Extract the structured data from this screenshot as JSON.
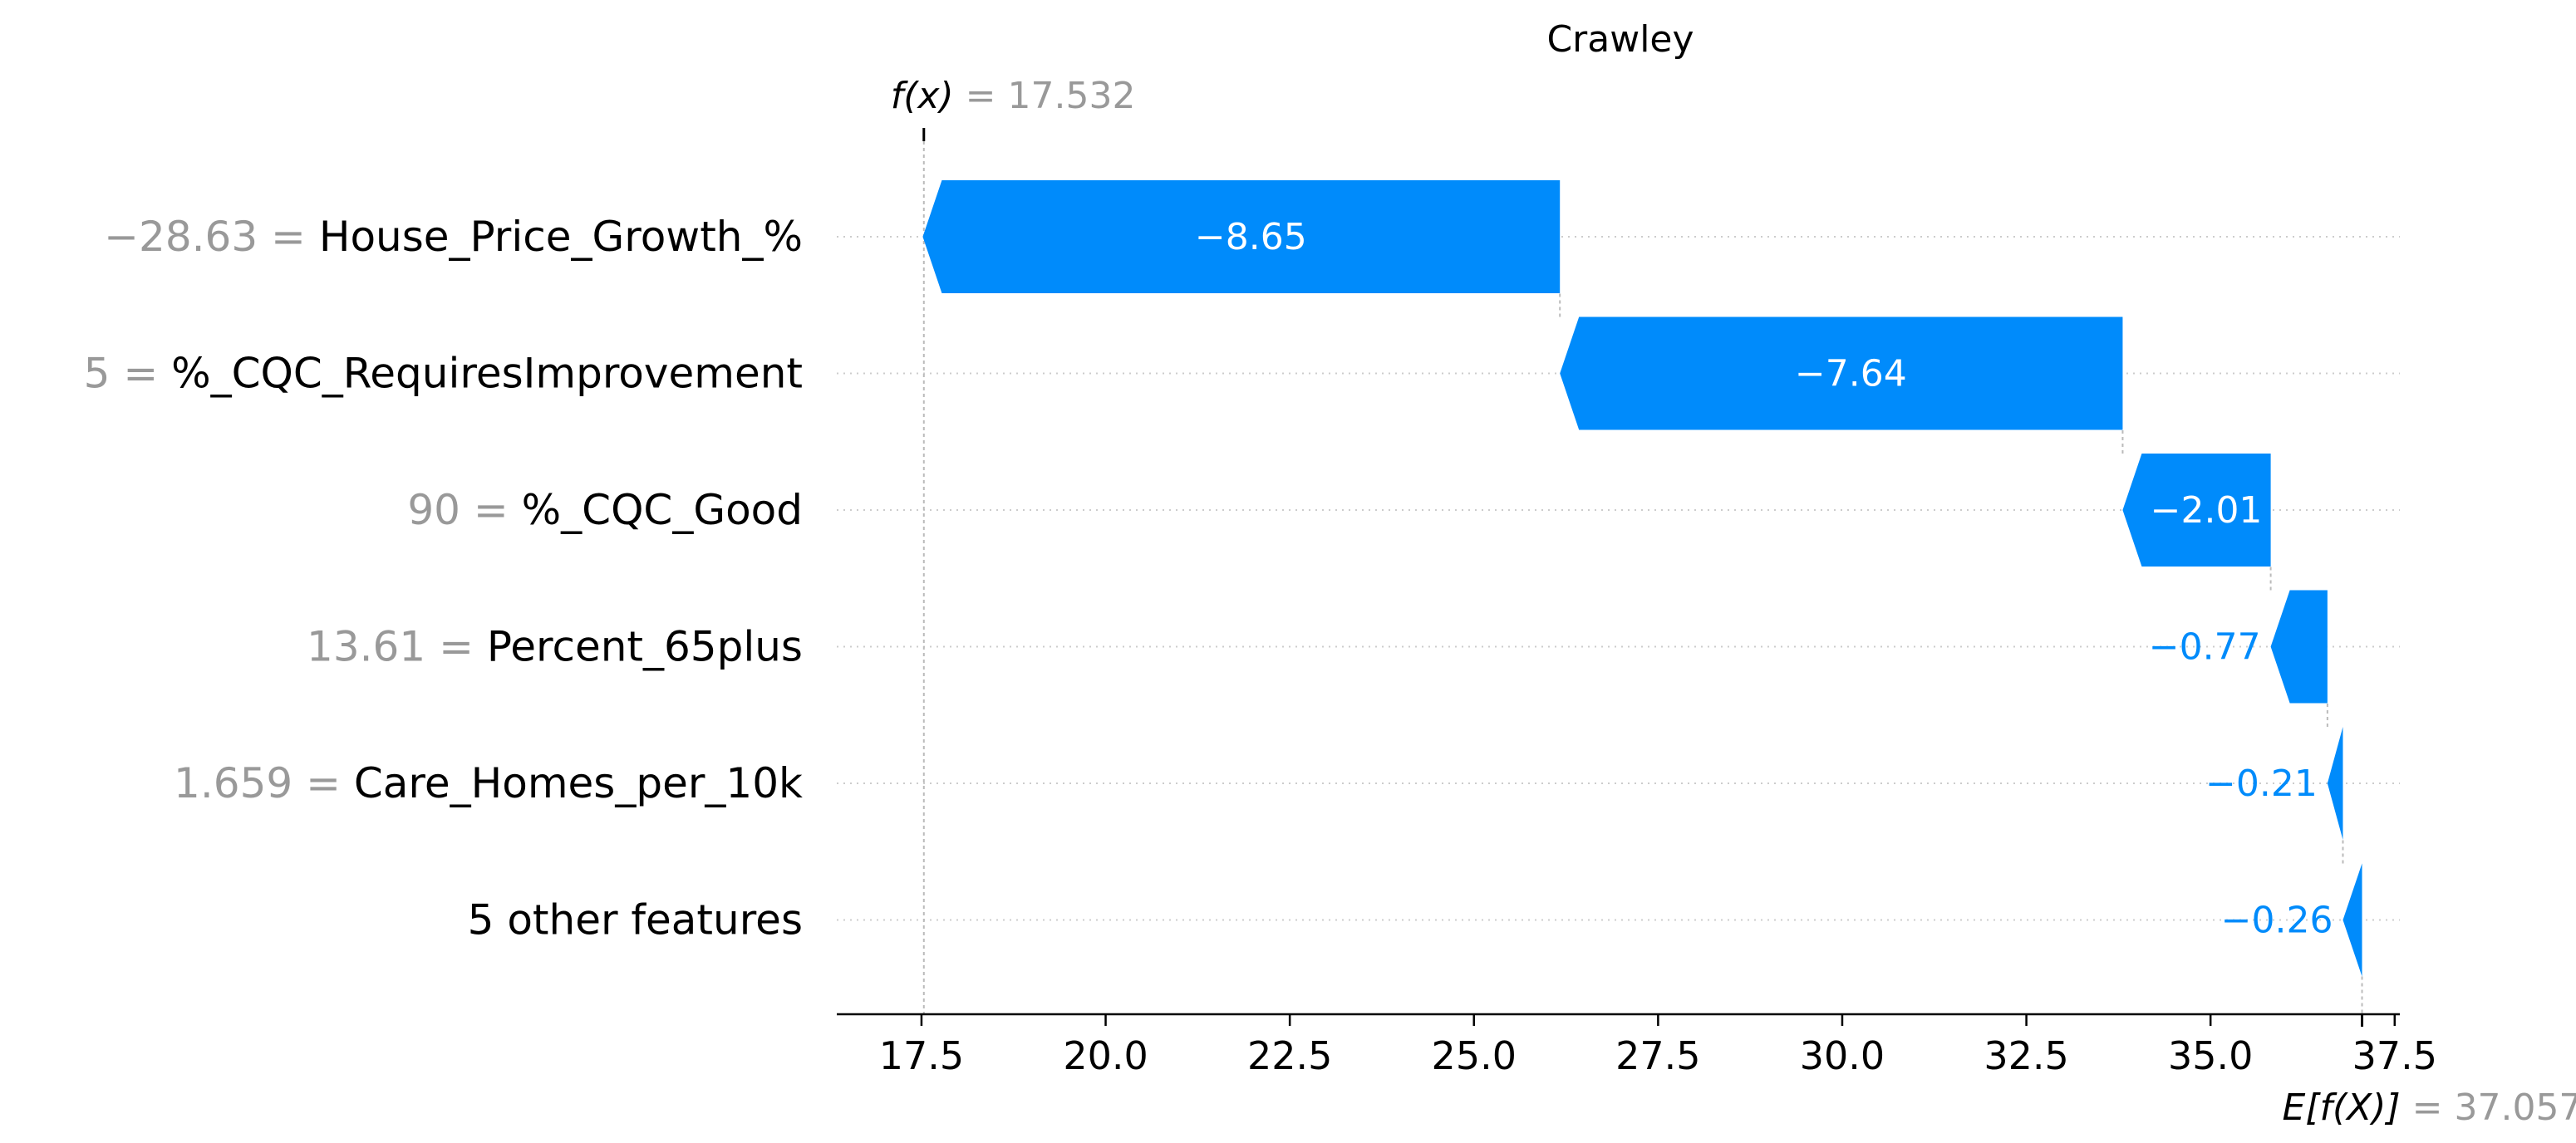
{
  "chart_data": {
    "type": "waterfall",
    "title": "Crawley",
    "fx": {
      "label": "f(x)",
      "value": "17.532",
      "num": 17.532
    },
    "base": {
      "label": "E[f(X)]",
      "value": "37.057",
      "num": 37.057
    },
    "features": [
      {
        "value": "−28.63",
        "name": "House_Price_Growth_%",
        "contribution": -8.65,
        "contribution_label": "−8.65"
      },
      {
        "value": "5",
        "name": "%_CQC_RequiresImprovement",
        "contribution": -7.64,
        "contribution_label": "−7.64"
      },
      {
        "value": "90",
        "name": "%_CQC_Good",
        "contribution": -2.01,
        "contribution_label": "−2.01"
      },
      {
        "value": "13.61",
        "name": "Percent_65plus",
        "contribution": -0.77,
        "contribution_label": "−0.77"
      },
      {
        "value": "1.659",
        "name": "Care_Homes_per_10k",
        "contribution": -0.21,
        "contribution_label": "−0.21"
      },
      {
        "value": "",
        "name": "5 other features",
        "contribution": -0.26,
        "contribution_label": "−0.26"
      }
    ],
    "xticks": [
      "17.5",
      "20.0",
      "22.5",
      "25.0",
      "27.5",
      "30.0",
      "32.5",
      "35.0",
      "37.5"
    ],
    "xlim": [
      16.35,
      37.57
    ],
    "colors": {
      "negative": "#008bfb",
      "grey_text": "#999999",
      "axis": "#000000",
      "gridline": "#cccccc"
    }
  }
}
